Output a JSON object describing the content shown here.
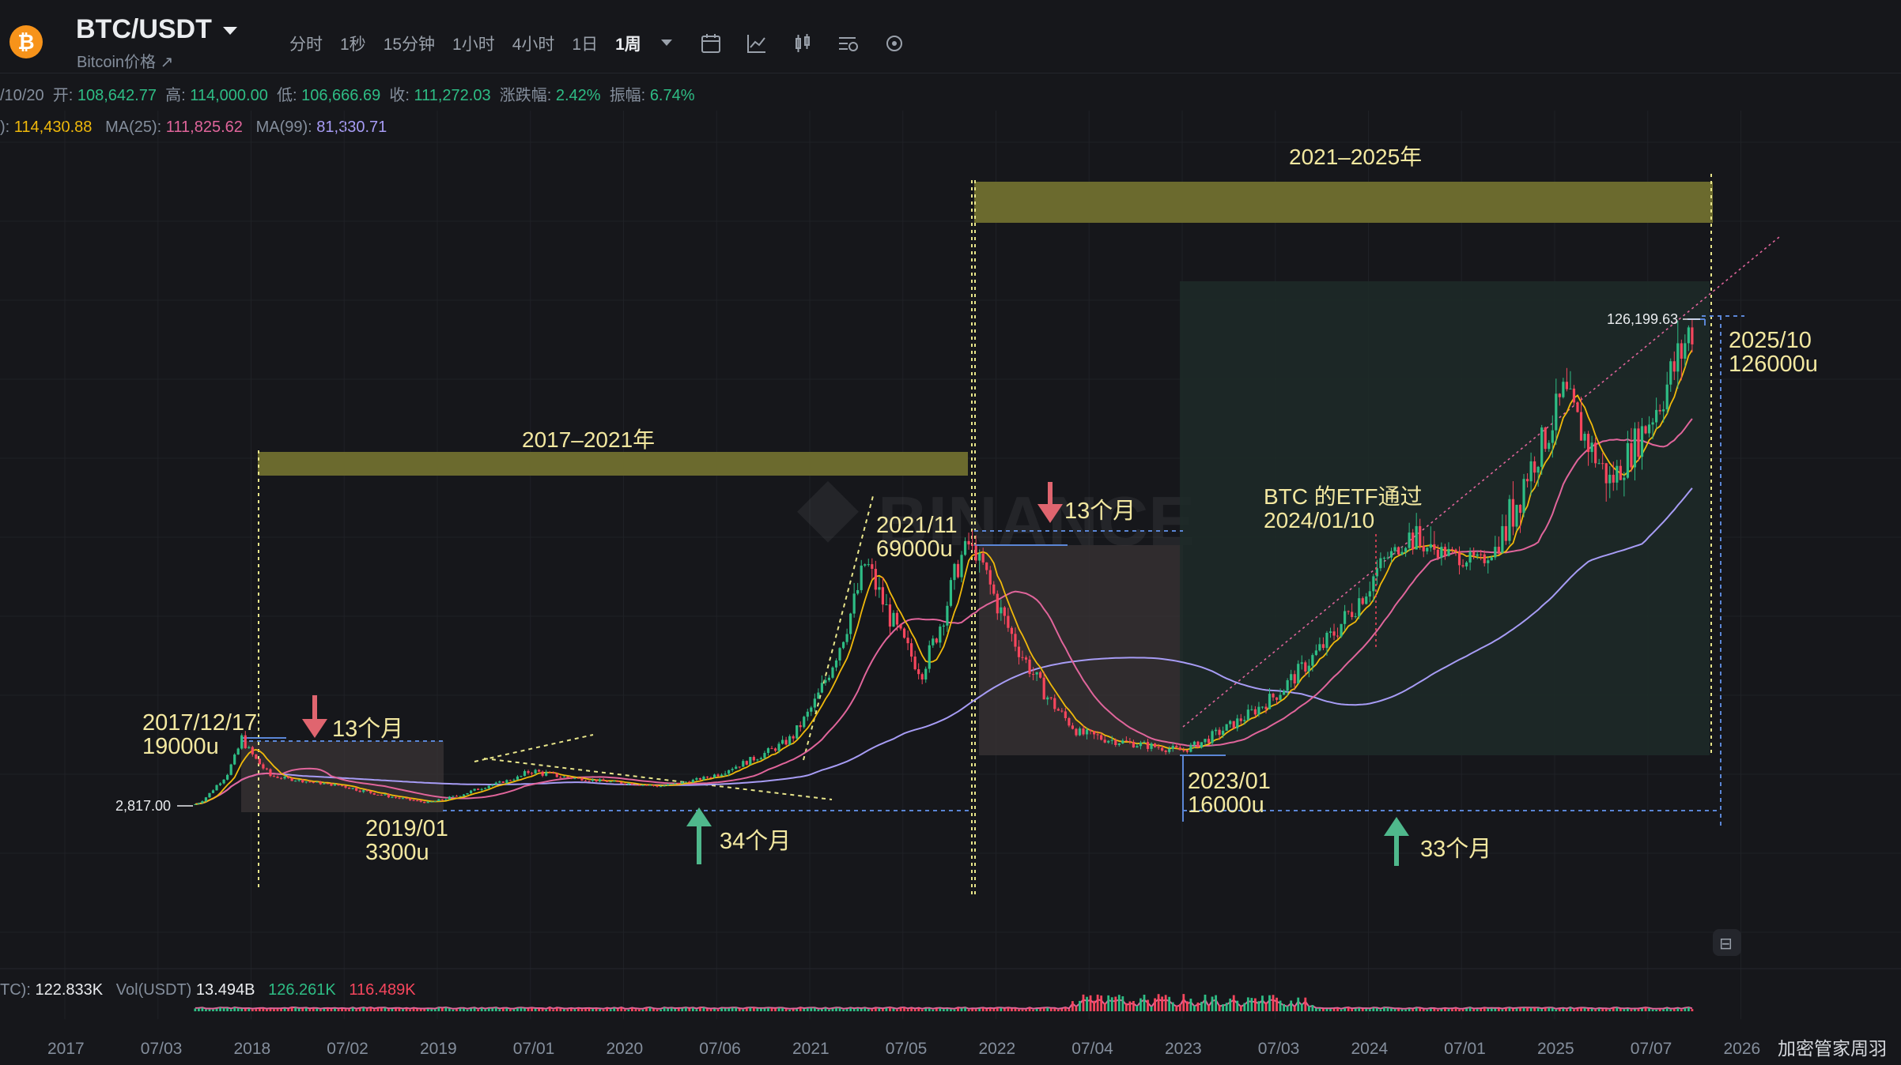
{
  "header": {
    "pair": "BTC/USDT",
    "subtitle": "Bitcoin价格 ↗",
    "intervals": [
      "分时",
      "1秒",
      "15分钟",
      "1小时",
      "4小时",
      "1日",
      "1周"
    ],
    "active_interval": "1周",
    "tools": [
      "calendar-icon",
      "line-chart-icon",
      "candles-icon",
      "indicator-settings-icon",
      "settings-icon"
    ]
  },
  "ohlc": {
    "date": "/10/20",
    "open_label": "开:",
    "open": "108,642.77",
    "high_label": "高:",
    "high": "114,000.00",
    "low_label": "低:",
    "low": "106,666.69",
    "close_label": "收:",
    "close": "111,272.03",
    "change_label": "涨跌幅:",
    "change": "2.42%",
    "amp_label": "振幅:",
    "amp": "6.74%"
  },
  "ma": {
    "ma7_label": "):",
    "ma7": "114,430.88",
    "ma25_label": "MA(25):",
    "ma25": "111,825.62",
    "ma99_label": "MA(99):",
    "ma99": "81,330.71"
  },
  "volume": {
    "btc_label": "TC):",
    "btc": "122.833K",
    "usdt_label": "Vol(USDT)",
    "usdt": "13.494B",
    "ma_a": "126.261K",
    "ma_b": "116.489K"
  },
  "annotations": {
    "period1": "2017–2021年",
    "period2": "2021–2025年",
    "peak2017_date": "2017/12/17",
    "peak2017_price": "19000u",
    "bottom2019_date": "2019/01",
    "bottom2019_price": "3300u",
    "peak2021_date": "2021/11",
    "peak2021_price": "69000u",
    "bottom2023_date": "2023/01",
    "bottom2023_price": "16000u",
    "peak2025_date": "2025/10",
    "peak2025_price": "126000u",
    "etf_line1": "BTC 的ETF通过",
    "etf_line2": "2024/01/10",
    "bear1": "13个月",
    "bear2": "13个月",
    "bull1": "34个月",
    "bull2": "33个月",
    "low_marker": "2,817.00",
    "high_marker": "126,199.63"
  },
  "watermark": "加密管家周羽",
  "chart_data": {
    "type": "candlestick",
    "title": "BTC/USDT",
    "x_ticks": [
      "2017",
      "07/03",
      "2018",
      "07/02",
      "2019",
      "07/01",
      "2020",
      "07/06",
      "2021",
      "07/05",
      "2022",
      "07/04",
      "2023",
      "07/03",
      "2024",
      "07/01",
      "2025",
      "07/07",
      "2026"
    ],
    "x": [
      "2017.7",
      "2017.95",
      "2018.1",
      "2018.5",
      "2018.95",
      "2019.5",
      "2020.2",
      "2020.9",
      "2021.3",
      "2021.6",
      "2021.85",
      "2022.45",
      "2023.0",
      "2023.5",
      "2024.2",
      "2024.6",
      "2025.05",
      "2025.3",
      "2025.75"
    ],
    "close": [
      2817,
      19000,
      10000,
      6500,
      3300,
      11000,
      6500,
      19000,
      60000,
      34000,
      69000,
      20000,
      16000,
      29000,
      70000,
      60000,
      106000,
      80000,
      126000
    ],
    "ma7_last": 114430.88,
    "ma25_last": 111825.62,
    "ma99_last": 81330.71,
    "last_candle": {
      "open": 108642.77,
      "high": 114000.0,
      "low": 106666.69,
      "close": 111272.03,
      "change_pct": 2.42,
      "amplitude_pct": 6.74
    },
    "colors": {
      "up": "#2ebd85",
      "down": "#f6465d",
      "ma7": "#f0b90b",
      "ma25": "#e0659b",
      "ma99": "#a79cf5",
      "band": "#6b6a2e",
      "text": "#f3e8a0"
    }
  }
}
